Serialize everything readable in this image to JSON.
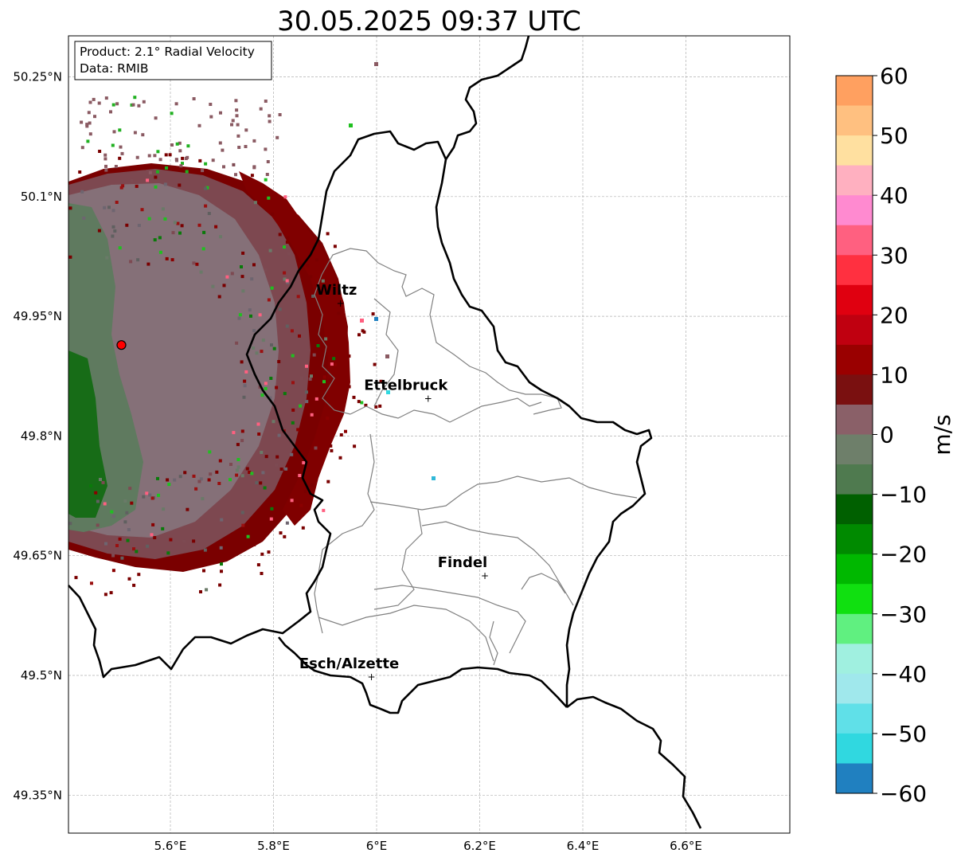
{
  "title": "30.05.2025 09:37 UTC",
  "info_box": {
    "product": "Product: 2.1° Radial Velocity",
    "data": "Data: RMIB"
  },
  "map": {
    "lon_range": [
      5.4,
      6.8
    ],
    "lat_range": [
      49.32,
      50.32
    ],
    "x_ticks": [
      {
        "value": 5.6,
        "label": "5.6°E"
      },
      {
        "value": 5.8,
        "label": "5.8°E"
      },
      {
        "value": 6.0,
        "label": "6°E"
      },
      {
        "value": 6.2,
        "label": "6.2°E"
      },
      {
        "value": 6.4,
        "label": "6.4°E"
      },
      {
        "value": 6.6,
        "label": "6.6°E"
      }
    ],
    "y_ticks": [
      {
        "value": 50.25,
        "label": "50.25°N"
      },
      {
        "value": 50.1,
        "label": "50.1°N"
      },
      {
        "value": 49.95,
        "label": "49.95°N"
      },
      {
        "value": 49.8,
        "label": "49.8°N"
      },
      {
        "value": 49.65,
        "label": "49.65°N"
      },
      {
        "value": 49.5,
        "label": "49.5°N"
      },
      {
        "value": 49.35,
        "label": "49.35°N"
      }
    ],
    "grid": true,
    "radar_site": {
      "lon": 5.505,
      "lat": 49.914
    },
    "cities": [
      {
        "name": "Wiltz",
        "lon": 5.93,
        "lat": 49.966
      },
      {
        "name": "Ettelbruck",
        "lon": 6.1,
        "lat": 49.847
      },
      {
        "name": "Findel",
        "lon": 6.21,
        "lat": 49.625
      },
      {
        "name": "Esch/Alzette",
        "lon": 5.99,
        "lat": 49.498
      }
    ]
  },
  "colorbar": {
    "label": "m/s",
    "min": -60,
    "max": 60,
    "ticks": [
      {
        "value": 60,
        "label": "60"
      },
      {
        "value": 50,
        "label": "50"
      },
      {
        "value": 40,
        "label": "40"
      },
      {
        "value": 30,
        "label": "30"
      },
      {
        "value": 20,
        "label": "20"
      },
      {
        "value": 10,
        "label": "10"
      },
      {
        "value": 0,
        "label": "0"
      },
      {
        "value": -10,
        "label": "−10"
      },
      {
        "value": -20,
        "label": "−20"
      },
      {
        "value": -30,
        "label": "−30"
      },
      {
        "value": -40,
        "label": "−40"
      },
      {
        "value": -50,
        "label": "−50"
      },
      {
        "value": -60,
        "label": "−60"
      }
    ],
    "colors": {
      "outbound_strong": "#ffa060",
      "outbound_mid": "#ff8ad0",
      "outbound_red": "#e00010",
      "outbound_dark": "#7a0000",
      "near_zero_pos": "#8a5a62",
      "near_zero_neg": "#5e7a5e",
      "inbound_dark": "#006000",
      "inbound_bright": "#20e020",
      "inbound_cyan": "#30d8e0",
      "inbound_blue": "#2080c0"
    }
  }
}
